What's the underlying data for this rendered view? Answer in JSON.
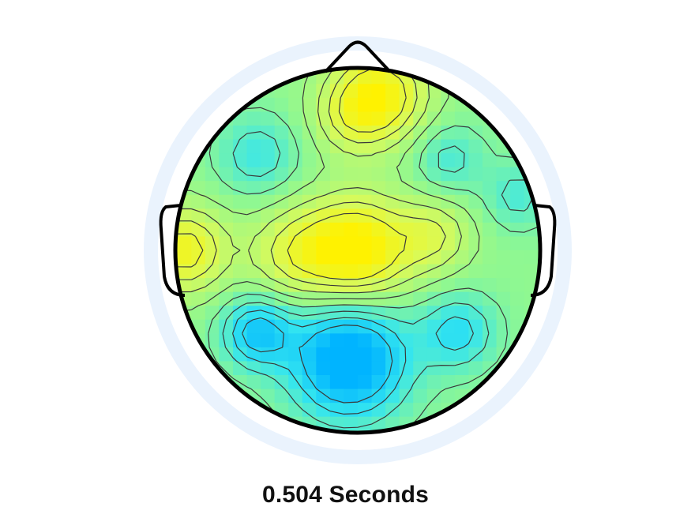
{
  "figure": {
    "caption": "0.504 Seconds"
  },
  "colors": {
    "background": "#ffffff",
    "halo": "#eaf3fd",
    "outline": "#000000",
    "contour": "#3a3a3a"
  },
  "chart_data": {
    "type": "heatmap",
    "subtype": "scalp-topography",
    "title": "",
    "time_s": 0.504,
    "colormap": [
      [
        0.0,
        "#00b4ff"
      ],
      [
        0.25,
        "#33e5f0"
      ],
      [
        0.5,
        "#90f890"
      ],
      [
        0.75,
        "#d8fa5a"
      ],
      [
        1.0,
        "#fff200"
      ]
    ],
    "value_range": [
      -1,
      1
    ],
    "contour_levels": [
      -0.7,
      -0.5,
      -0.3,
      -0.1,
      0.1,
      0.3,
      0.5,
      0.7
    ],
    "grid_size": 30,
    "sources": [
      {
        "x": 0.12,
        "y": -0.85,
        "amp": 0.95,
        "s": 0.18
      },
      {
        "x": -0.05,
        "y": -0.72,
        "amp": 0.35,
        "s": 0.14
      },
      {
        "x": 0.0,
        "y": 0.0,
        "amp": 1.1,
        "s": 0.2
      },
      {
        "x": -0.35,
        "y": 0.02,
        "amp": 0.55,
        "s": 0.18
      },
      {
        "x": 0.42,
        "y": -0.08,
        "amp": 0.5,
        "s": 0.14
      },
      {
        "x": -0.95,
        "y": 0.0,
        "amp": 0.85,
        "s": 0.16
      },
      {
        "x": -0.55,
        "y": -0.52,
        "amp": -0.45,
        "s": 0.15
      },
      {
        "x": 0.5,
        "y": -0.5,
        "amp": -0.4,
        "s": 0.13
      },
      {
        "x": -0.05,
        "y": 0.6,
        "amp": -1.25,
        "s": 0.22
      },
      {
        "x": -0.55,
        "y": 0.45,
        "amp": -0.85,
        "s": 0.13
      },
      {
        "x": 0.55,
        "y": 0.45,
        "amp": -0.6,
        "s": 0.14
      },
      {
        "x": 0.88,
        "y": -0.3,
        "amp": -0.4,
        "s": 0.12
      }
    ]
  }
}
